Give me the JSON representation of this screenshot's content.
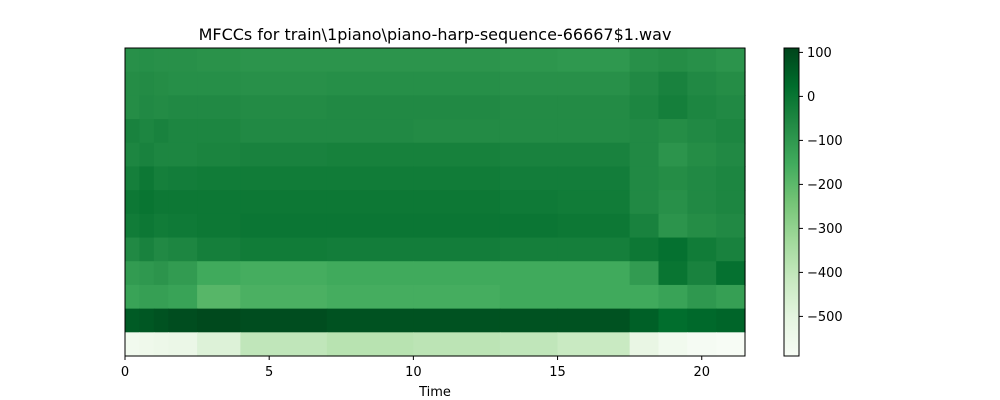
{
  "chart_data": {
    "type": "heatmap",
    "title": "MFCCs for train\\1piano\\piano-harp-sequence-66667$1.wav",
    "xlabel": "Time",
    "ylabel": "",
    "xlim": [
      0,
      21.5
    ],
    "x_ticks": [
      0,
      5,
      10,
      15,
      20
    ],
    "x_tick_labels": [
      "0",
      "5",
      "10",
      "15",
      "20"
    ],
    "n_coefficients": 13,
    "segments_x": [
      0,
      0.5,
      1,
      1.5,
      2.5,
      4,
      7,
      10,
      13,
      15,
      17.5,
      18.5,
      19.5,
      20.5,
      21.5
    ],
    "coefficient_rows": [
      {
        "index": 12,
        "values": [
          -80,
          -75,
          -80,
          -80,
          -85,
          -90,
          -90,
          -90,
          -95,
          -100,
          -80,
          -70,
          -80,
          -90
        ]
      },
      {
        "index": 11,
        "values": [
          -70,
          -65,
          -70,
          -75,
          -75,
          -80,
          -75,
          -75,
          -80,
          -80,
          -60,
          -40,
          -60,
          -70
        ]
      },
      {
        "index": 10,
        "values": [
          -70,
          -60,
          -65,
          -60,
          -60,
          -65,
          -60,
          -60,
          -65,
          -65,
          -50,
          -30,
          -50,
          -60
        ]
      },
      {
        "index": 9,
        "values": [
          -40,
          -50,
          -40,
          -50,
          -50,
          -60,
          -60,
          -65,
          -65,
          -65,
          -60,
          -70,
          -60,
          -50
        ]
      },
      {
        "index": 8,
        "values": [
          -50,
          -40,
          -50,
          -50,
          -45,
          -40,
          -35,
          -35,
          -40,
          -40,
          -60,
          -90,
          -70,
          -60
        ]
      },
      {
        "index": 7,
        "values": [
          -30,
          -10,
          -30,
          -25,
          -20,
          -20,
          -20,
          -20,
          -25,
          -25,
          -60,
          -70,
          -60,
          -50
        ]
      },
      {
        "index": 6,
        "values": [
          -10,
          0,
          -10,
          -10,
          -10,
          -10,
          -10,
          -10,
          -15,
          -20,
          -60,
          -80,
          -60,
          -50
        ]
      },
      {
        "index": 5,
        "values": [
          -20,
          -10,
          -20,
          -15,
          -10,
          -5,
          -5,
          -5,
          -5,
          -10,
          -40,
          -90,
          -70,
          -60
        ]
      },
      {
        "index": 4,
        "values": [
          -60,
          -40,
          -60,
          -50,
          -30,
          -20,
          -25,
          -25,
          -30,
          -30,
          -10,
          10,
          -20,
          -40
        ]
      },
      {
        "index": 3,
        "values": [
          -110,
          -100,
          -90,
          -110,
          -150,
          -160,
          -150,
          -150,
          -150,
          -150,
          -110,
          0,
          -40,
          10
        ]
      },
      {
        "index": 2,
        "values": [
          -130,
          -120,
          -120,
          -130,
          -190,
          -170,
          -160,
          -160,
          -150,
          -150,
          -150,
          -130,
          -100,
          -120
        ]
      },
      {
        "index": 1,
        "values": [
          60,
          70,
          80,
          90,
          100,
          90,
          80,
          80,
          80,
          80,
          50,
          20,
          30,
          40
        ]
      },
      {
        "index": 0,
        "values": [
          -560,
          -550,
          -540,
          -530,
          -480,
          -400,
          -380,
          -390,
          -400,
          -420,
          -520,
          -560,
          -580,
          -590
        ]
      }
    ],
    "colorbar": {
      "colormap": "Greens",
      "range": [
        -590,
        110
      ],
      "ticks": [
        100,
        0,
        -100,
        -200,
        -300,
        -400,
        -500
      ],
      "tick_labels": [
        "100",
        "0",
        "−100",
        "−200",
        "−300",
        "−400",
        "−500"
      ]
    },
    "grid": false,
    "legend": "none"
  }
}
